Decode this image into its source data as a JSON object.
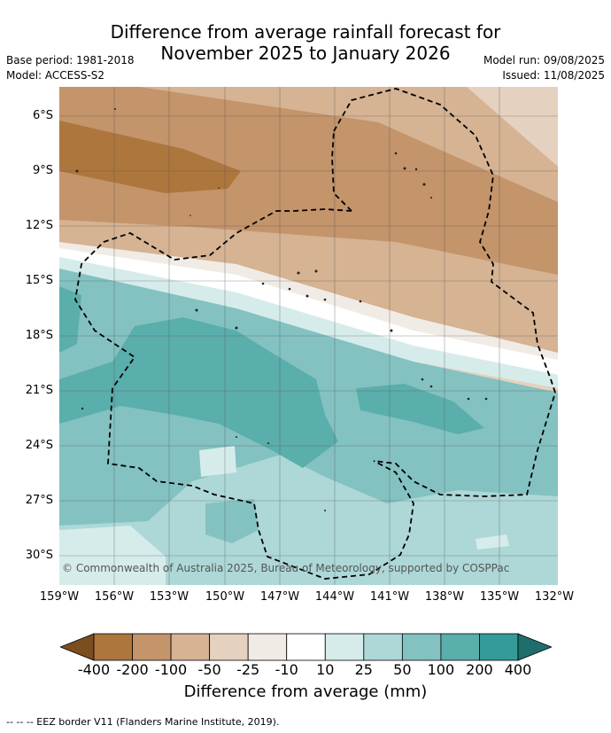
{
  "title_line1": "Difference from average rainfall forecast for",
  "title_line2": "November 2025 to January 2026",
  "base_period": "Base period: 1981-2018",
  "model": "Model: ACCESS-S2",
  "model_run": "Model run: 09/08/2025",
  "issued": "Issued: 11/08/2025",
  "lat_labels": [
    "6°S",
    "9°S",
    "12°S",
    "15°S",
    "18°S",
    "21°S",
    "24°S",
    "27°S",
    "30°S"
  ],
  "lon_labels": [
    "159°W",
    "156°W",
    "153°W",
    "150°W",
    "147°W",
    "144°W",
    "141°W",
    "138°W",
    "135°W",
    "132°W"
  ],
  "copyright": "© Commonwealth of Australia 2025, Bureau of Meteorology, supported by COSPPac",
  "colorbar": {
    "labels": [
      "-400",
      "-200",
      "-100",
      "-50",
      "-25",
      "-10",
      "10",
      "25",
      "50",
      "100",
      "200",
      "400"
    ],
    "colors": [
      "#7a4e1f",
      "#ad763d",
      "#c4946a",
      "#d5b393",
      "#e5d1bf",
      "#f1ebe6",
      "#ffffff",
      "#d6eceb",
      "#add8d7",
      "#83c2c1",
      "#5aaeac",
      "#349b99",
      "#1e6e6c"
    ],
    "title": "Difference from average (mm)"
  },
  "footnote": "-- -- -- EEZ border V11 (Flanders Marine Institute, 2019)."
}
